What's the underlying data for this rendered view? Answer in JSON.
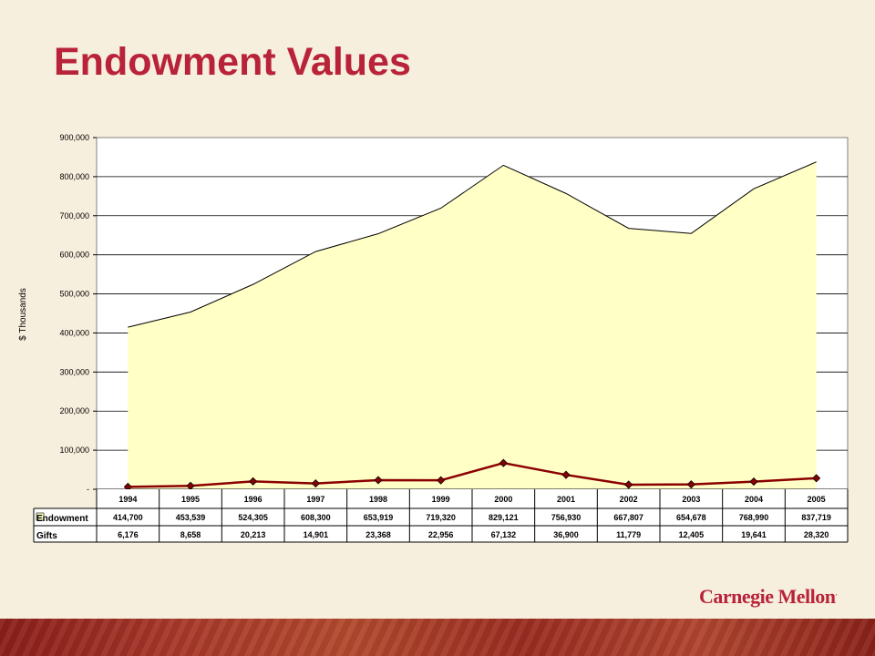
{
  "title": "Endowment Values",
  "logo_text": "Carnegie Mellon",
  "logo_mark": ".",
  "colors": {
    "title": "#b8233a",
    "area_fill": "#ffffc6",
    "gifts_line": "#8b0000",
    "background": "#f7efdd"
  },
  "chart_data": {
    "type": "area",
    "ylabel": "$ Thousands",
    "ylim": [
      0,
      900000
    ],
    "yticks": [
      0,
      100000,
      200000,
      300000,
      400000,
      500000,
      600000,
      700000,
      800000,
      900000
    ],
    "ytick_labels": [
      "-",
      "100,000",
      "200,000",
      "300,000",
      "400,000",
      "500,000",
      "600,000",
      "700,000",
      "800,000",
      "900,000"
    ],
    "grid": true,
    "categories": [
      "1994",
      "1995",
      "1996",
      "1997",
      "1998",
      "1999",
      "2000",
      "2001",
      "2002",
      "2003",
      "2004",
      "2005"
    ],
    "series": [
      {
        "name": "Endowment",
        "type": "area",
        "values": [
          414700,
          453539,
          524305,
          608300,
          653919,
          719320,
          829121,
          756930,
          667807,
          654678,
          768990,
          837719
        ],
        "labels": [
          "414,700",
          "453,539",
          "524,305",
          "608,300",
          "653,919",
          "719,320",
          "829,121",
          "756,930",
          "667,807",
          "654,678",
          "768,990",
          "837,719"
        ]
      },
      {
        "name": "Gifts",
        "type": "line",
        "values": [
          6176,
          8658,
          20213,
          14901,
          23368,
          22956,
          67132,
          36900,
          11779,
          12405,
          19641,
          28320
        ],
        "labels": [
          "6,176",
          "8,658",
          "20,213",
          "14,901",
          "23,368",
          "22,956",
          "67,132",
          "36,900",
          "11,779",
          "12,405",
          "19,641",
          "28,320"
        ]
      }
    ]
  }
}
